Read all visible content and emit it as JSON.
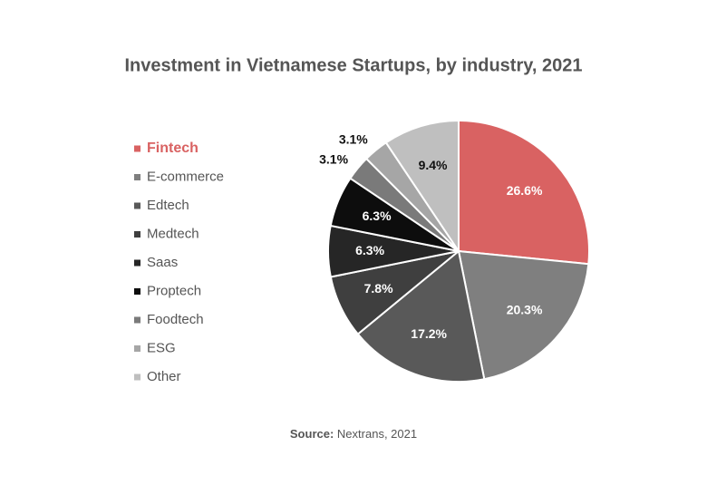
{
  "chart_data": {
    "type": "pie",
    "title": "Investment in Vietnamese Startups, by industry, 2021",
    "categories": [
      "Fintech",
      "E-commerce",
      "Edtech",
      "Medtech",
      "Saas",
      "Proptech",
      "Foodtech",
      "ESG",
      "Other"
    ],
    "values": [
      26.6,
      20.3,
      17.2,
      7.8,
      6.3,
      6.3,
      3.1,
      3.1,
      9.4
    ],
    "value_labels": [
      "26.6%",
      "20.3%",
      "17.2%",
      "7.8%",
      "6.3%",
      "6.3%",
      "3.1%",
      "3.1%",
      "9.4%"
    ],
    "colors": [
      "#d96262",
      "#7f7f7f",
      "#595959",
      "#3f3f3f",
      "#262626",
      "#0d0d0d",
      "#7a7a7a",
      "#a6a6a6",
      "#bfbfbf"
    ],
    "highlight": "Fintech",
    "legend": "left",
    "source_label": "Source:",
    "source_text": "Nextrans, 2021"
  }
}
